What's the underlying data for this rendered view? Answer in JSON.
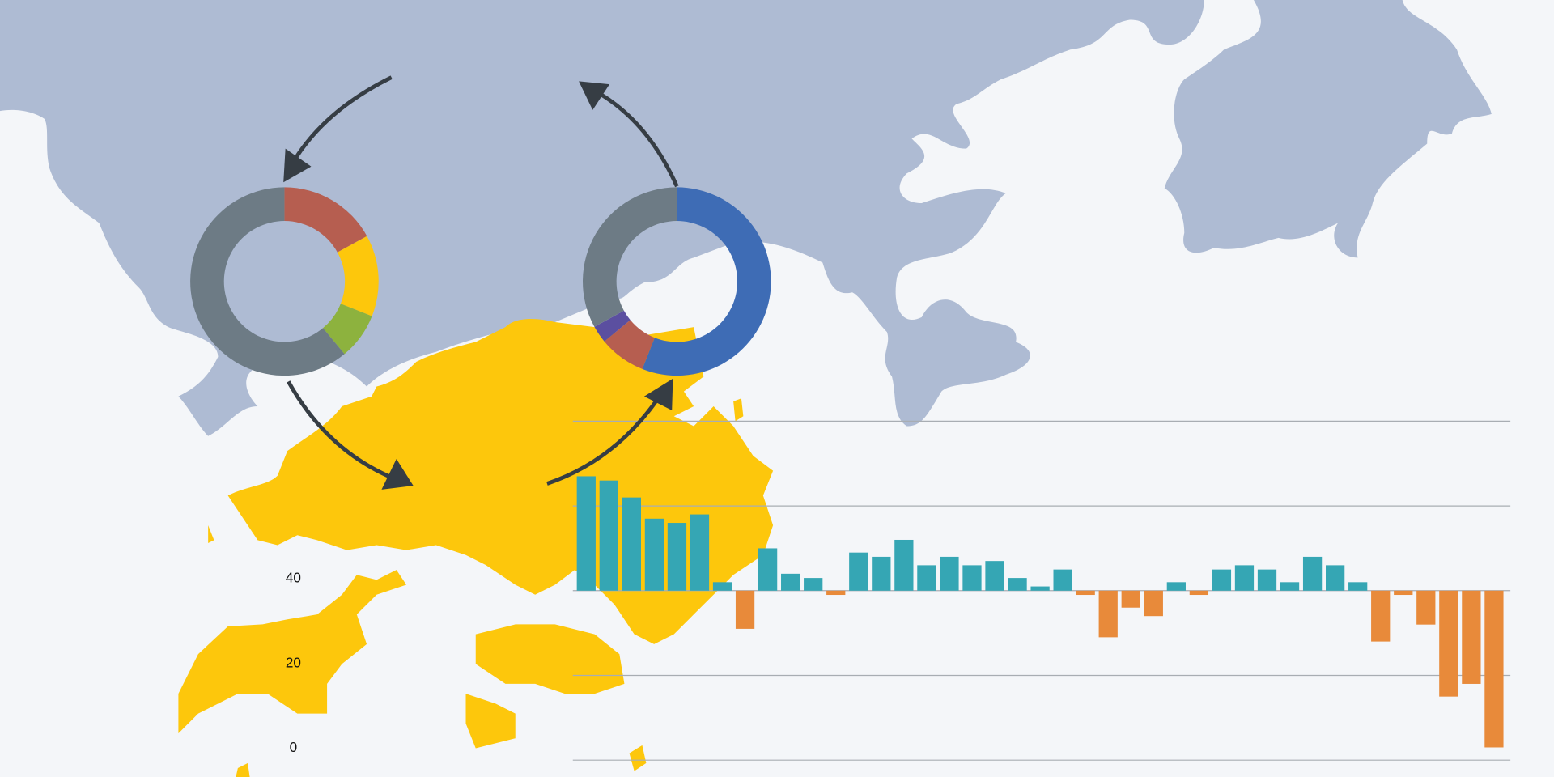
{
  "chart_data": [
    {
      "type": "bar",
      "categories": [
        null,
        null,
        null,
        null,
        null,
        null,
        null,
        null,
        null,
        null,
        null,
        null,
        null,
        null,
        null,
        null,
        null,
        null,
        null,
        null,
        null,
        null,
        null,
        null,
        null,
        null,
        null,
        null,
        null,
        null,
        null,
        null,
        null,
        null,
        null,
        null,
        null,
        null,
        null,
        null,
        null
      ],
      "values": [
        67,
        66,
        62,
        57,
        56,
        58,
        42,
        31,
        50,
        44,
        43,
        39,
        49,
        48,
        52,
        46,
        48,
        46,
        47,
        43,
        41,
        45,
        39,
        29,
        36,
        34,
        42,
        39,
        45,
        46,
        45,
        42,
        48,
        46,
        42,
        28,
        39,
        32,
        15,
        18,
        3
      ],
      "base": 40,
      "colors": {
        "above": "#35a6b4",
        "below": "#e88a3a"
      },
      "ylim": [
        0,
        80
      ],
      "yticks": [
        0,
        20,
        40
      ],
      "gridlines": [
        0,
        20,
        40,
        60,
        80
      ],
      "grid": true
    },
    {
      "type": "donut",
      "values": [
        17,
        14,
        8,
        61
      ],
      "colors": [
        "#b65e50",
        "#fdc70c",
        "#8db23e",
        "#6d7b85"
      ]
    },
    {
      "type": "donut",
      "values": [
        56,
        8,
        3,
        33
      ],
      "colors": [
        "#3e6cb5",
        "#b65e50",
        "#5b4fa0",
        "#6d7b85"
      ]
    }
  ]
}
